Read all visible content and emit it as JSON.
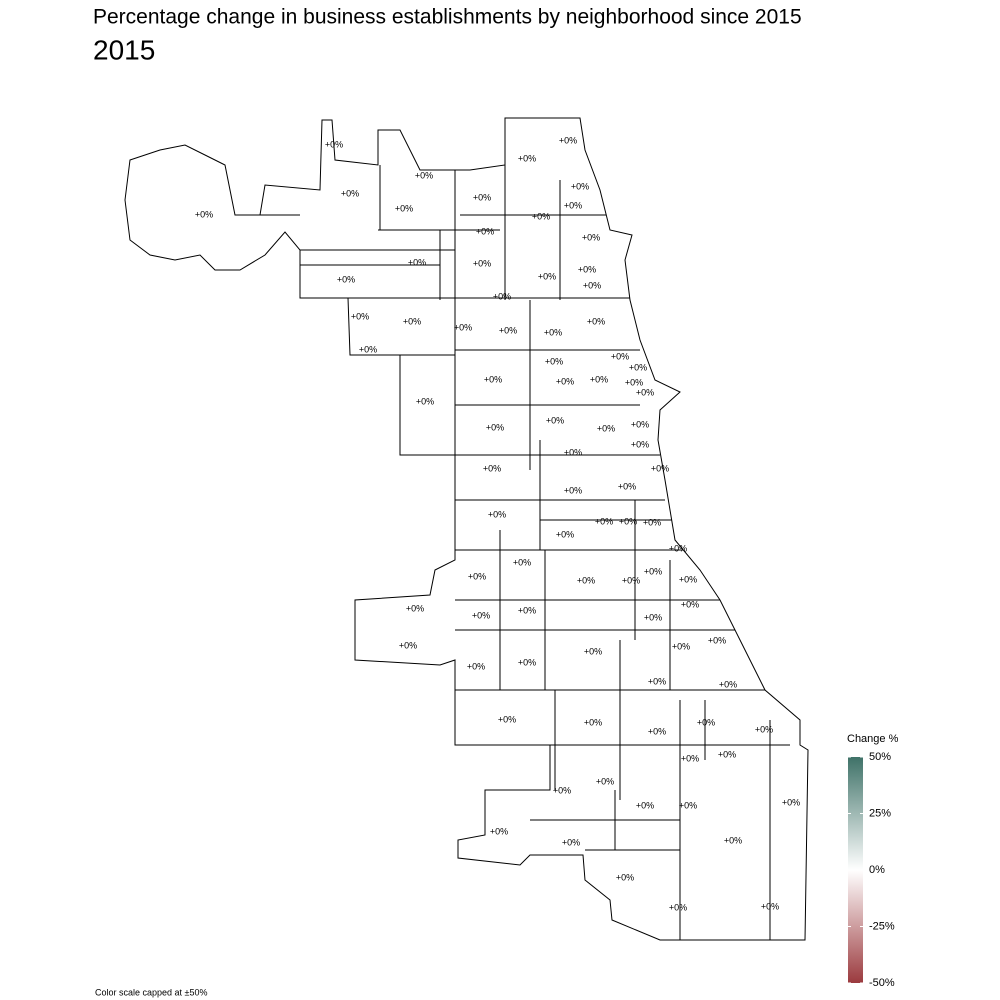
{
  "chart_data": {
    "type": "choropleth",
    "title": "Percentage change in business establishments by neighborhood since 2015",
    "subtitle": "2015",
    "legend_title": "Change %",
    "caption": "Color scale capped at ±50%",
    "legend_corner": "bottom-right",
    "scale_colors": {
      "low": "#9b3a3e",
      "mid": "#ffffff",
      "high": "#3f7268"
    },
    "scale_lim": [
      -50,
      50
    ],
    "scale_ticks": [
      {
        "value": 50,
        "label": "50%"
      },
      {
        "value": 25,
        "label": "25%"
      },
      {
        "value": 0,
        "label": "0%"
      },
      {
        "value": -25,
        "label": "-25%"
      },
      {
        "value": -50,
        "label": "-50%"
      }
    ],
    "regions": [
      {
        "value": 0,
        "label": "+0%"
      },
      {
        "value": 0,
        "label": "+0%"
      },
      {
        "value": 0,
        "label": "+0%"
      },
      {
        "value": 0,
        "label": "+0%"
      },
      {
        "value": 0,
        "label": "+0%"
      },
      {
        "value": 0,
        "label": "+0%"
      },
      {
        "value": 0,
        "label": "+0%"
      },
      {
        "value": 0,
        "label": "+0%"
      },
      {
        "value": 0,
        "label": "+0%"
      },
      {
        "value": 0,
        "label": "+0%"
      },
      {
        "value": 0,
        "label": "+0%"
      },
      {
        "value": 0,
        "label": "+0%"
      },
      {
        "value": 0,
        "label": "+0%"
      },
      {
        "value": 0,
        "label": "+0%"
      },
      {
        "value": 0,
        "label": "+0%"
      },
      {
        "value": 0,
        "label": "+0%"
      },
      {
        "value": 0,
        "label": "+0%"
      },
      {
        "value": 0,
        "label": "+0%"
      },
      {
        "value": 0,
        "label": "+0%"
      },
      {
        "value": 0,
        "label": "+0%"
      },
      {
        "value": 0,
        "label": "+0%"
      },
      {
        "value": 0,
        "label": "+0%"
      },
      {
        "value": 0,
        "label": "+0%"
      },
      {
        "value": 0,
        "label": "+0%"
      },
      {
        "value": 0,
        "label": "+0%"
      },
      {
        "value": 0,
        "label": "+0%"
      },
      {
        "value": 0,
        "label": "+0%"
      },
      {
        "value": 0,
        "label": "+0%"
      },
      {
        "value": 0,
        "label": "+0%"
      },
      {
        "value": 0,
        "label": "+0%"
      },
      {
        "value": 0,
        "label": "+0%"
      },
      {
        "value": 0,
        "label": "+0%"
      },
      {
        "value": 0,
        "label": "+0%"
      },
      {
        "value": 0,
        "label": "+0%"
      },
      {
        "value": 0,
        "label": "+0%"
      },
      {
        "value": 0,
        "label": "+0%"
      },
      {
        "value": 0,
        "label": "+0%"
      },
      {
        "value": 0,
        "label": "+0%"
      },
      {
        "value": 0,
        "label": "+0%"
      },
      {
        "value": 0,
        "label": "+0%"
      },
      {
        "value": 0,
        "label": "+0%"
      },
      {
        "value": 0,
        "label": "+0%"
      },
      {
        "value": 0,
        "label": "+0%"
      },
      {
        "value": 0,
        "label": "+0%"
      },
      {
        "value": 0,
        "label": "+0%"
      },
      {
        "value": 0,
        "label": "+0%"
      },
      {
        "value": 0,
        "label": "+0%"
      },
      {
        "value": 0,
        "label": "+0%"
      },
      {
        "value": 0,
        "label": "+0%"
      },
      {
        "value": 0,
        "label": "+0%"
      },
      {
        "value": 0,
        "label": "+0%"
      },
      {
        "value": 0,
        "label": "+0%"
      },
      {
        "value": 0,
        "label": "+0%"
      },
      {
        "value": 0,
        "label": "+0%"
      },
      {
        "value": 0,
        "label": "+0%"
      },
      {
        "value": 0,
        "label": "+0%"
      },
      {
        "value": 0,
        "label": "+0%"
      },
      {
        "value": 0,
        "label": "+0%"
      },
      {
        "value": 0,
        "label": "+0%"
      },
      {
        "value": 0,
        "label": "+0%"
      },
      {
        "value": 0,
        "label": "+0%"
      },
      {
        "value": 0,
        "label": "+0%"
      },
      {
        "value": 0,
        "label": "+0%"
      },
      {
        "value": 0,
        "label": "+0%"
      },
      {
        "value": 0,
        "label": "+0%"
      },
      {
        "value": 0,
        "label": "+0%"
      },
      {
        "value": 0,
        "label": "+0%"
      },
      {
        "value": 0,
        "label": "+0%"
      },
      {
        "value": 0,
        "label": "+0%"
      },
      {
        "value": 0,
        "label": "+0%"
      },
      {
        "value": 0,
        "label": "+0%"
      },
      {
        "value": 0,
        "label": "+0%"
      },
      {
        "value": 0,
        "label": "+0%"
      },
      {
        "value": 0,
        "label": "+0%"
      },
      {
        "value": 0,
        "label": "+0%"
      },
      {
        "value": 0,
        "label": "+0%"
      },
      {
        "value": 0,
        "label": "+0%"
      },
      {
        "value": 0,
        "label": "+0%"
      },
      {
        "value": 0,
        "label": "+0%"
      },
      {
        "value": 0,
        "label": "+0%"
      },
      {
        "value": 0,
        "label": "+0%"
      },
      {
        "value": 0,
        "label": "+0%"
      },
      {
        "value": 0,
        "label": "+0%"
      },
      {
        "value": 0,
        "label": "+0%"
      },
      {
        "value": 0,
        "label": "+0%"
      },
      {
        "value": 0,
        "label": "+0%"
      },
      {
        "value": 0,
        "label": "+0%"
      },
      {
        "value": 0,
        "label": "+0%"
      },
      {
        "value": 0,
        "label": "+0%"
      }
    ]
  }
}
